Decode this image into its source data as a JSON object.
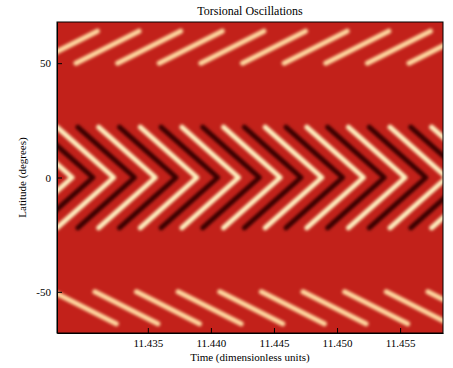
{
  "chart_data": {
    "type": "line",
    "title": "Torsional Oscillations",
    "x_label": "Time (dimensionless units)",
    "y_label": "Latitude (degrees)",
    "xlim": [
      11.4278,
      11.4584
    ],
    "ylim": [
      -68,
      68
    ],
    "xticks": [
      {
        "value": 11.435,
        "label": "11.435"
      },
      {
        "value": 11.44,
        "label": "11.440"
      },
      {
        "value": 11.445,
        "label": "11.445"
      },
      {
        "value": 11.45,
        "label": "11.450"
      },
      {
        "value": 11.455,
        "label": "11.455"
      }
    ],
    "yticks": [
      -50,
      0,
      50
    ],
    "grid": false,
    "series": [
      {
        "color": "#3b0500",
        "x": [
          11.42615,
          11.4284,
          11.43065,
          11.4284,
          11.42615
        ],
        "values": [
          22,
          11,
          0,
          -11,
          -22
        ]
      },
      {
        "color": "#3b0500",
        "x": [
          11.42945,
          11.4317,
          11.43395,
          11.4317,
          11.42945
        ],
        "values": [
          22,
          11,
          0,
          -11,
          -22
        ]
      },
      {
        "color": "#3b0500",
        "x": [
          11.43275,
          11.435,
          11.43725,
          11.435,
          11.43275
        ],
        "values": [
          22,
          11,
          0,
          -11,
          -22
        ]
      },
      {
        "color": "#3b0500",
        "x": [
          11.43605,
          11.4383,
          11.44055,
          11.4383,
          11.43605
        ],
        "values": [
          22,
          11,
          0,
          -11,
          -22
        ]
      },
      {
        "color": "#3b0500",
        "x": [
          11.43935,
          11.4416,
          11.44385,
          11.4416,
          11.43935
        ],
        "values": [
          22,
          11,
          0,
          -11,
          -22
        ]
      },
      {
        "color": "#3b0500",
        "x": [
          11.44265,
          11.4449,
          11.44715,
          11.4449,
          11.44265
        ],
        "values": [
          22,
          11,
          0,
          -11,
          -22
        ]
      },
      {
        "color": "#3b0500",
        "x": [
          11.44595,
          11.4482,
          11.45045,
          11.4482,
          11.44595
        ],
        "values": [
          22,
          11,
          0,
          -11,
          -22
        ]
      },
      {
        "color": "#3b0500",
        "x": [
          11.44925,
          11.4515,
          11.45375,
          11.4515,
          11.44925
        ],
        "values": [
          22,
          11,
          0,
          -11,
          -22
        ]
      },
      {
        "color": "#3b0500",
        "x": [
          11.45255,
          11.4548,
          11.45705,
          11.4548,
          11.45255
        ],
        "values": [
          22,
          11,
          0,
          -11,
          -22
        ]
      },
      {
        "color": "#3b0500",
        "x": [
          11.45585,
          11.4581,
          11.46035,
          11.4581,
          11.45585
        ],
        "values": [
          22,
          11,
          0,
          -11,
          -22
        ]
      },
      {
        "color": "#fff0c0",
        "x": [
          11.4245,
          11.42675,
          11.429,
          11.42675,
          11.4245
        ],
        "values": [
          22,
          11,
          0,
          -11,
          -22
        ]
      },
      {
        "color": "#fff0c0",
        "x": [
          11.4278,
          11.43005,
          11.4323,
          11.43005,
          11.4278
        ],
        "values": [
          22,
          11,
          0,
          -11,
          -22
        ]
      },
      {
        "color": "#fff0c0",
        "x": [
          11.4311,
          11.43335,
          11.4356,
          11.43335,
          11.4311
        ],
        "values": [
          22,
          11,
          0,
          -11,
          -22
        ]
      },
      {
        "color": "#fff0c0",
        "x": [
          11.4344,
          11.43665,
          11.4389,
          11.43665,
          11.4344
        ],
        "values": [
          22,
          11,
          0,
          -11,
          -22
        ]
      },
      {
        "color": "#fff0c0",
        "x": [
          11.4377,
          11.43995,
          11.4422,
          11.43995,
          11.4377
        ],
        "values": [
          22,
          11,
          0,
          -11,
          -22
        ]
      },
      {
        "color": "#fff0c0",
        "x": [
          11.441,
          11.44325,
          11.4455,
          11.44325,
          11.441
        ],
        "values": [
          22,
          11,
          0,
          -11,
          -22
        ]
      },
      {
        "color": "#fff0c0",
        "x": [
          11.4443,
          11.44655,
          11.4488,
          11.44655,
          11.4443
        ],
        "values": [
          22,
          11,
          0,
          -11,
          -22
        ]
      },
      {
        "color": "#fff0c0",
        "x": [
          11.4476,
          11.44985,
          11.4521,
          11.44985,
          11.4476
        ],
        "values": [
          22,
          11,
          0,
          -11,
          -22
        ]
      },
      {
        "color": "#fff0c0",
        "x": [
          11.4509,
          11.45315,
          11.4554,
          11.45315,
          11.4509
        ],
        "values": [
          22,
          11,
          0,
          -11,
          -22
        ]
      },
      {
        "color": "#fff0c0",
        "x": [
          11.4542,
          11.45645,
          11.4587,
          11.45645,
          11.4542
        ],
        "values": [
          22,
          11,
          0,
          -11,
          -22
        ]
      },
      {
        "color": "#fff0c0",
        "x": [
          11.4575,
          11.45975,
          11.462,
          11.45975,
          11.4575
        ],
        "values": [
          22,
          11,
          0,
          -11,
          -22
        ]
      },
      {
        "color": "#ffd9a0",
        "x": [
          11.426,
          11.431
        ],
        "values": [
          50,
          64
        ]
      },
      {
        "color": "#ffd9a0",
        "x": [
          11.4293,
          11.4343
        ],
        "values": [
          50,
          64
        ]
      },
      {
        "color": "#ffd9a0",
        "x": [
          11.4326,
          11.4376
        ],
        "values": [
          50,
          64
        ]
      },
      {
        "color": "#ffd9a0",
        "x": [
          11.4359,
          11.4409
        ],
        "values": [
          50,
          64
        ]
      },
      {
        "color": "#ffd9a0",
        "x": [
          11.4392,
          11.4442
        ],
        "values": [
          50,
          64
        ]
      },
      {
        "color": "#ffd9a0",
        "x": [
          11.4425,
          11.4475
        ],
        "values": [
          50,
          64
        ]
      },
      {
        "color": "#ffd9a0",
        "x": [
          11.4458,
          11.4508
        ],
        "values": [
          50,
          64
        ]
      },
      {
        "color": "#ffd9a0",
        "x": [
          11.4491,
          11.4541
        ],
        "values": [
          50,
          64
        ]
      },
      {
        "color": "#ffd9a0",
        "x": [
          11.4524,
          11.4574
        ],
        "values": [
          50,
          64
        ]
      },
      {
        "color": "#ffd9a0",
        "x": [
          11.4557,
          11.4607
        ],
        "values": [
          50,
          64
        ]
      },
      {
        "color": "#ffd9a0",
        "x": [
          11.4275,
          11.4325
        ],
        "values": [
          -50,
          -64
        ]
      },
      {
        "color": "#ffd9a0",
        "x": [
          11.4308,
          11.4358
        ],
        "values": [
          -50,
          -64
        ]
      },
      {
        "color": "#ffd9a0",
        "x": [
          11.4341,
          11.4391
        ],
        "values": [
          -50,
          -64
        ]
      },
      {
        "color": "#ffd9a0",
        "x": [
          11.4374,
          11.4424
        ],
        "values": [
          -50,
          -64
        ]
      },
      {
        "color": "#ffd9a0",
        "x": [
          11.4407,
          11.4457
        ],
        "values": [
          -50,
          -64
        ]
      },
      {
        "color": "#ffd9a0",
        "x": [
          11.444,
          11.449
        ],
        "values": [
          -50,
          -64
        ]
      },
      {
        "color": "#ffd9a0",
        "x": [
          11.4473,
          11.4523
        ],
        "values": [
          -50,
          -64
        ]
      },
      {
        "color": "#ffd9a0",
        "x": [
          11.4506,
          11.4556
        ],
        "values": [
          -50,
          -64
        ]
      },
      {
        "color": "#ffd9a0",
        "x": [
          11.4539,
          11.4589
        ],
        "values": [
          -50,
          -64
        ]
      },
      {
        "color": "#ffd9a0",
        "x": [
          11.4572,
          11.4622
        ],
        "values": [
          -50,
          -64
        ]
      }
    ]
  }
}
